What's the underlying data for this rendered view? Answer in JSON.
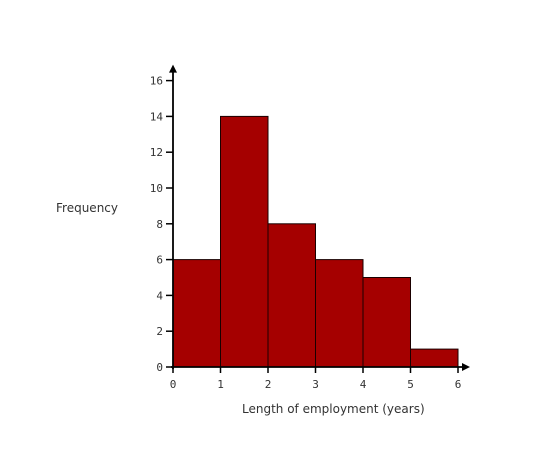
{
  "chart_data": {
    "type": "bar",
    "title": "",
    "xlabel": "Length of employment (years)",
    "ylabel": "Frequency",
    "bins": [
      {
        "from": 0,
        "to": 1,
        "value": 6
      },
      {
        "from": 1,
        "to": 2,
        "value": 14
      },
      {
        "from": 2,
        "to": 3,
        "value": 8
      },
      {
        "from": 3,
        "to": 4,
        "value": 6
      },
      {
        "from": 4,
        "to": 5,
        "value": 5
      },
      {
        "from": 5,
        "to": 6,
        "value": 1
      }
    ],
    "x_ticks": [
      "0",
      "1",
      "2",
      "3",
      "4",
      "5",
      "6"
    ],
    "y_ticks": [
      "0",
      "2",
      "4",
      "6",
      "8",
      "10",
      "12",
      "14",
      "16"
    ],
    "xlim": [
      0,
      6
    ],
    "ylim": [
      0,
      16
    ],
    "bar_color": "#a50000",
    "grid": false,
    "legend": "none"
  }
}
